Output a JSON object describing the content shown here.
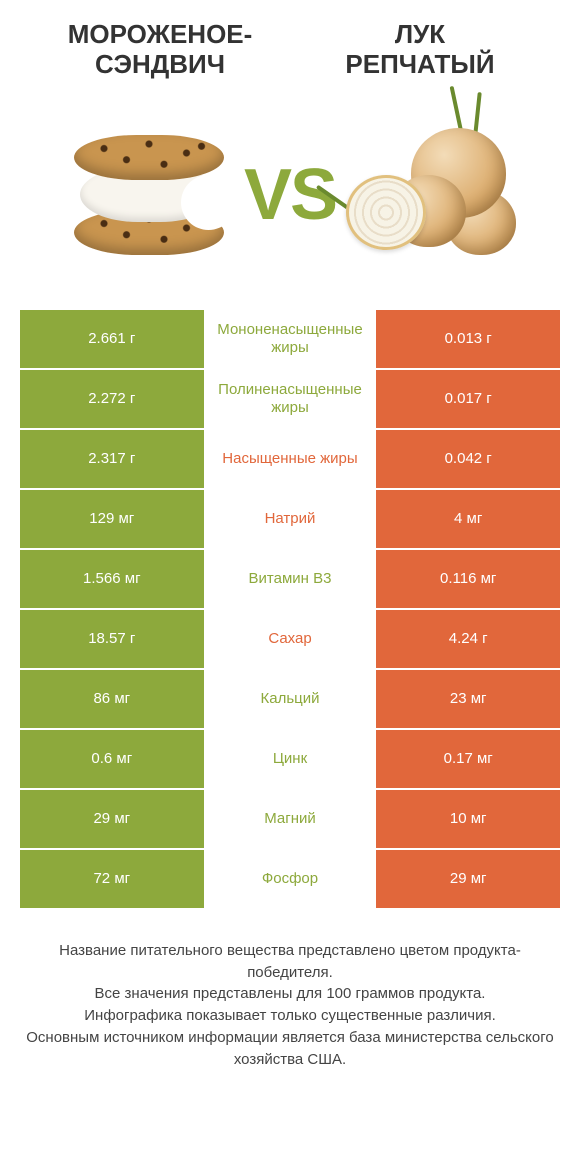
{
  "header": {
    "left_title_line1": "МОРОЖЕНОЕ-",
    "left_title_line2": "СЭНДВИЧ",
    "right_title_line1": "ЛУК",
    "right_title_line2": "РЕПЧАТЫЙ"
  },
  "vs_label": "VS",
  "colors": {
    "left_bg": "#8da93c",
    "right_bg": "#e1673b",
    "green_text": "#8da93c",
    "orange_text": "#e1673b",
    "page_bg": "#ffffff"
  },
  "rows": [
    {
      "left": "2.661 г",
      "label": "Мононенасыщенные жиры",
      "label_color": "green",
      "right": "0.013 г"
    },
    {
      "left": "2.272 г",
      "label": "Полиненасыщенные жиры",
      "label_color": "green",
      "right": "0.017 г"
    },
    {
      "left": "2.317 г",
      "label": "Насыщенные жиры",
      "label_color": "orange",
      "right": "0.042 г"
    },
    {
      "left": "129 мг",
      "label": "Натрий",
      "label_color": "orange",
      "right": "4 мг"
    },
    {
      "left": "1.566 мг",
      "label": "Витамин B3",
      "label_color": "green",
      "right": "0.116 мг"
    },
    {
      "left": "18.57 г",
      "label": "Сахар",
      "label_color": "orange",
      "right": "4.24 г"
    },
    {
      "left": "86 мг",
      "label": "Кальций",
      "label_color": "green",
      "right": "23 мг"
    },
    {
      "left": "0.6 мг",
      "label": "Цинк",
      "label_color": "green",
      "right": "0.17 мг"
    },
    {
      "left": "29 мг",
      "label": "Магний",
      "label_color": "green",
      "right": "10 мг"
    },
    {
      "left": "72 мг",
      "label": "Фосфор",
      "label_color": "green",
      "right": "29 мг"
    }
  ],
  "footer": {
    "line1": "Название питательного вещества представлено цветом продукта-победителя.",
    "line2": "Все значения представлены для 100 граммов продукта.",
    "line3": "Инфографика показывает только существенные различия.",
    "line4": "Основным источником информации является база министерства сельского хозяйства США."
  }
}
